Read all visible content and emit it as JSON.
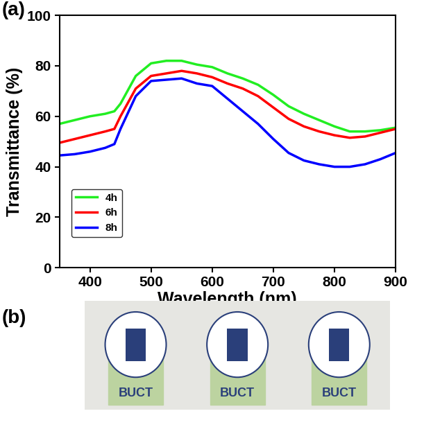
{
  "chart_data": {
    "type": "line",
    "x_label": "Wavelength (nm)",
    "y_label": "Transmittance (%)",
    "x": [
      350,
      375,
      400,
      425,
      440,
      450,
      475,
      500,
      525,
      550,
      575,
      600,
      625,
      650,
      675,
      700,
      725,
      750,
      775,
      800,
      825,
      850,
      875,
      900
    ],
    "series": [
      {
        "name": "4h",
        "color": "#22ee22",
        "values": [
          57,
          58.5,
          60,
          61,
          62,
          65,
          76,
          81,
          82,
          82,
          80.5,
          79.5,
          77,
          75,
          72.5,
          68.5,
          64,
          61,
          58.5,
          56,
          54,
          54,
          54.5,
          55.5
        ]
      },
      {
        "name": "6h",
        "color": "#ff0000",
        "values": [
          49.5,
          51,
          52.5,
          54,
          55,
          60,
          71,
          76,
          77,
          78,
          77,
          75.5,
          73,
          71,
          68,
          63.5,
          59,
          56,
          54,
          52.5,
          51.5,
          52,
          53.5,
          55
        ]
      },
      {
        "name": "8h",
        "color": "#0000ff",
        "values": [
          44.5,
          45,
          46,
          47.5,
          49,
          55,
          68,
          74,
          74.5,
          75,
          73,
          72,
          67,
          62,
          57,
          51,
          45.5,
          42.5,
          41,
          40,
          40,
          41,
          43,
          45.5
        ]
      }
    ],
    "xlim": [
      350,
      900
    ],
    "xticks": [
      400,
      500,
      600,
      700,
      800,
      900
    ],
    "ylim": [
      0,
      100
    ],
    "yticks": [
      0,
      20,
      40,
      60,
      80,
      100
    ],
    "legend": "lower left"
  },
  "panel_labels": [
    "(a)",
    "(b)"
  ],
  "photo_labels": [
    "BUCT",
    "BUCT",
    "BUCT"
  ]
}
